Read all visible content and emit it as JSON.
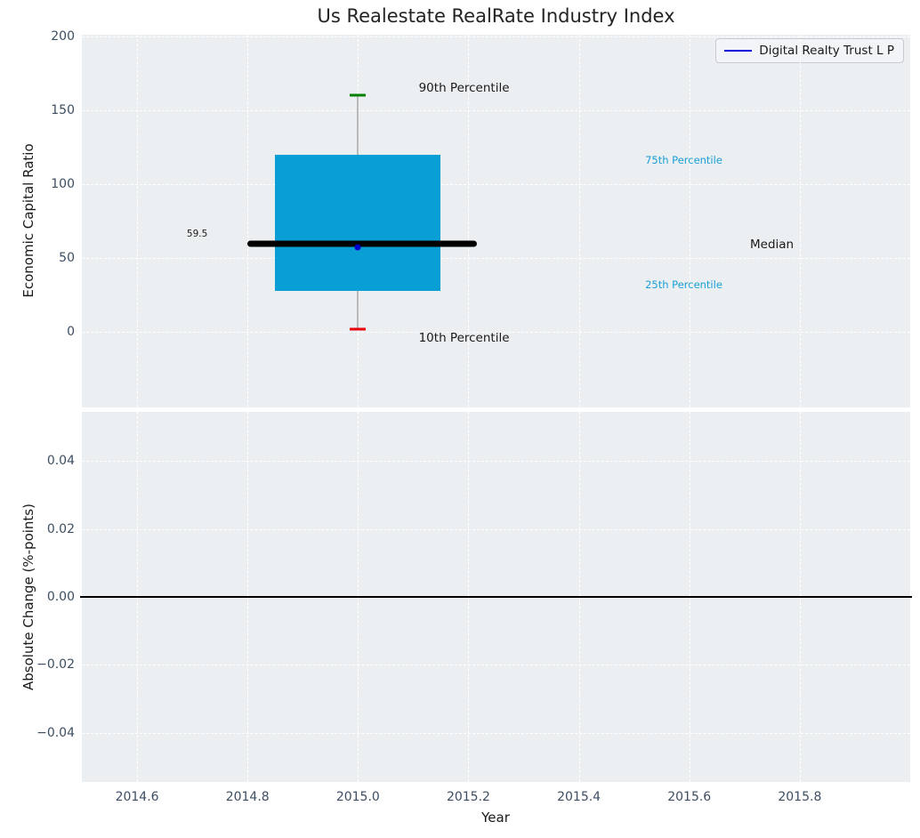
{
  "title": "Us Realestate RealRate Industry Index",
  "legend": {
    "label": "Digital Realty Trust L P",
    "line_color": "#0000dd"
  },
  "colors": {
    "plot_bg": "#ebeff1",
    "grid": "#ffffff",
    "tick_label": "#3d4e63",
    "box_fill": "#0a9fd4",
    "percentile_text": "#19a0d5",
    "whisker": "#7f7f7f",
    "cap_high": "#008000",
    "cap_low": "#e8000b",
    "median_line": "#000000",
    "company_marker": "#0000cd",
    "zero_line": "#000000",
    "text": "#1a1a1a"
  },
  "axes": {
    "x": {
      "label": "Year",
      "lim": [
        2014.5,
        2016.0
      ],
      "ticks": [
        {
          "v": 2014.6,
          "label": "2014.6"
        },
        {
          "v": 2014.8,
          "label": "2014.8"
        },
        {
          "v": 2015.0,
          "label": "2015.0"
        },
        {
          "v": 2015.2,
          "label": "2015.2"
        },
        {
          "v": 2015.4,
          "label": "2015.4"
        },
        {
          "v": 2015.6,
          "label": "2015.6"
        },
        {
          "v": 2015.8,
          "label": "2015.8"
        }
      ]
    },
    "top_y": {
      "label": "Economic Capital Ratio",
      "lim": [
        -51,
        201
      ],
      "ticks": [
        {
          "v": 0,
          "label": "0"
        },
        {
          "v": 50,
          "label": "50"
        },
        {
          "v": 100,
          "label": "100"
        },
        {
          "v": 150,
          "label": "150"
        },
        {
          "v": 200,
          "label": "200"
        }
      ]
    },
    "bottom_y": {
      "label": "Absolute Change (%-points)",
      "lim": [
        -0.0545,
        0.0545
      ],
      "ticks": [
        {
          "v": 0.04,
          "label": "0.04"
        },
        {
          "v": 0.02,
          "label": "0.02"
        },
        {
          "v": 0.0,
          "label": "0.00"
        },
        {
          "v": -0.02,
          "label": "−0.02"
        },
        {
          "v": -0.04,
          "label": "−0.04"
        }
      ]
    }
  },
  "chart_data": [
    {
      "type": "box",
      "panel": "top",
      "title": "Us Realestate RealRate Industry Index",
      "ylabel": "Economic Capital Ratio",
      "x": 2015.0,
      "p10": 2,
      "p25": 28,
      "median": 59.5,
      "p75": 120,
      "p90": 160,
      "median_value_label": "59.5",
      "box_x_range": [
        2014.85,
        2015.15
      ],
      "median_x_range": [
        2014.8,
        2015.215
      ],
      "cap_half_width": 0.0145,
      "series": [
        {
          "name": "Digital Realty Trust L P",
          "x": [
            2015.0
          ],
          "y": [
            57
          ]
        }
      ],
      "annotations": [
        {
          "text": "90th Percentile",
          "x": 2015.11,
          "y": 165,
          "color": "#1a1a1a",
          "size": 13.5
        },
        {
          "text": "75th Percentile",
          "x": 2015.52,
          "y": 116,
          "color": "#19a0d5",
          "size": 11.5
        },
        {
          "text": "Median",
          "x": 2015.71,
          "y": 59,
          "color": "#1a1a1a",
          "size": 13.5
        },
        {
          "text": "25th Percentile",
          "x": 2015.52,
          "y": 32,
          "color": "#19a0d5",
          "size": 11.5
        },
        {
          "text": "10th Percentile",
          "x": 2015.11,
          "y": -4,
          "color": "#1a1a1a",
          "size": 13.5
        },
        {
          "text": "59.5",
          "x": 2014.69,
          "y": 66.5,
          "color": "#1a1a1a",
          "size": 10.5
        }
      ],
      "legend": [
        "Digital Realty Trust L P"
      ],
      "grid": true
    },
    {
      "type": "line",
      "panel": "bottom",
      "ylabel": "Absolute Change (%-points)",
      "xlabel": "Year",
      "zero_line_y": 0.0,
      "x": [],
      "y": [],
      "grid": true
    }
  ]
}
